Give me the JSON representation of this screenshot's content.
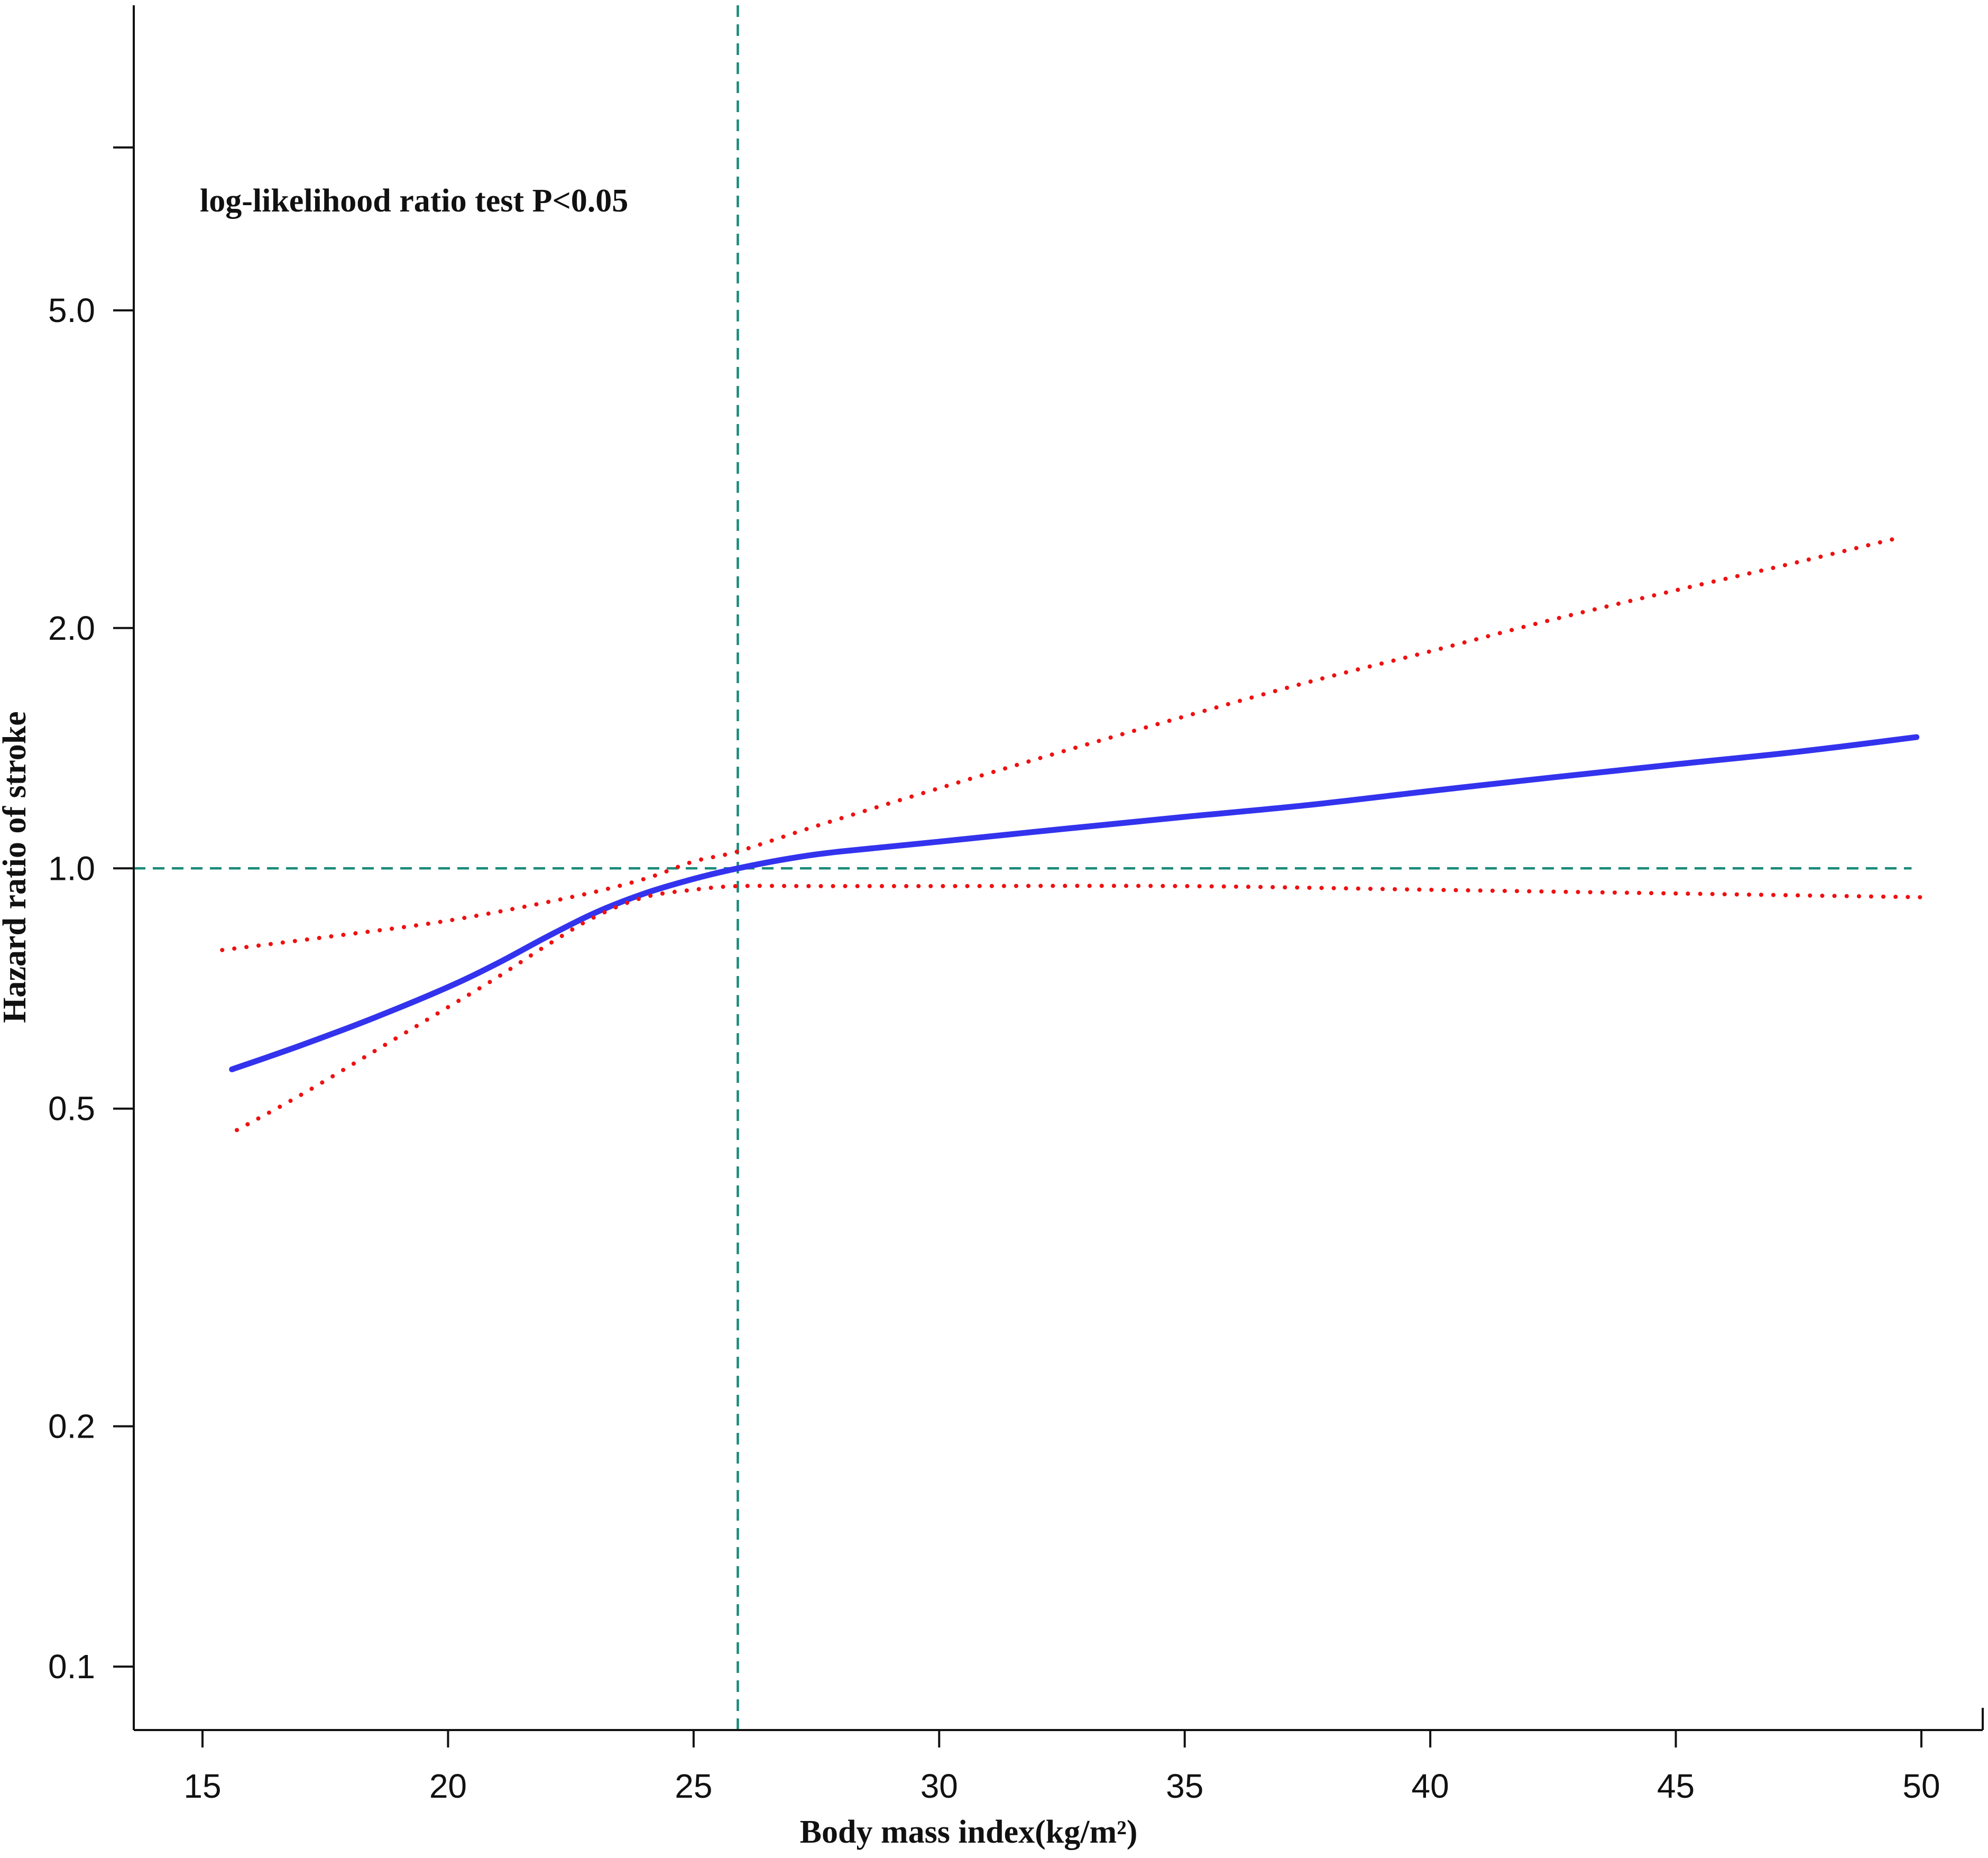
{
  "chart_data": {
    "type": "line",
    "annotation": "log-likelihood ratio test P<0.05",
    "xlabel": "Body mass index(kg/m²)",
    "ylabel": "Hazard ratio of stroke",
    "xlim": [
      13.6,
      51.2
    ],
    "ylim": [
      0.08,
      9.5
    ],
    "y_scale": "log",
    "grid": false,
    "legend": "none",
    "x_ticks": [
      15,
      20,
      25,
      30,
      35,
      40,
      45,
      50
    ],
    "x_tick_labels": [
      "15",
      "20",
      "25",
      "30",
      "35",
      "40",
      "45",
      "50"
    ],
    "y_ticks": [
      0.1,
      0.2,
      0.5,
      1.0,
      2.0,
      5.0,
      8.0
    ],
    "y_tick_labels": [
      "0.1",
      "0.2",
      "0.5",
      "1.0",
      "2.0",
      "5.0",
      ""
    ],
    "reference_lines": {
      "vertical_x": 25.9,
      "horizontal_y": 1.0,
      "color": "#1a8a7a"
    },
    "series": [
      {
        "role": "estimate",
        "color": "#3333ee",
        "style": "solid",
        "x": [
          15.6,
          17,
          18.5,
          20,
          21,
          22,
          23,
          24,
          25,
          25.9,
          27,
          28,
          30,
          32.5,
          35,
          37.5,
          40,
          42.5,
          45,
          47.5,
          49.9
        ],
        "y": [
          0.56,
          0.6,
          0.65,
          0.71,
          0.76,
          0.82,
          0.88,
          0.93,
          0.97,
          1.0,
          1.03,
          1.05,
          1.08,
          1.12,
          1.16,
          1.2,
          1.25,
          1.3,
          1.35,
          1.4,
          1.46
        ]
      },
      {
        "role": "upper-ci",
        "color": "#ee1111",
        "style": "dotted",
        "x": [
          15.4,
          17.5,
          20,
          22.5,
          24,
          25,
          25.9,
          27.5,
          30,
          32.5,
          35,
          37.5,
          40,
          42.5,
          45,
          47.5,
          49.6
        ],
        "y": [
          0.79,
          0.82,
          0.86,
          0.92,
          0.97,
          1.02,
          1.05,
          1.13,
          1.26,
          1.4,
          1.55,
          1.71,
          1.87,
          2.05,
          2.23,
          2.42,
          2.6
        ]
      },
      {
        "role": "lower-ci",
        "color": "#ee1111",
        "style": "dotted",
        "x": [
          15.7,
          17,
          18.5,
          20,
          21,
          22,
          23,
          24,
          25,
          25.9,
          27.5,
          30,
          35,
          40,
          45,
          47.5,
          50
        ],
        "y": [
          0.47,
          0.52,
          0.59,
          0.67,
          0.73,
          0.8,
          0.87,
          0.92,
          0.94,
          0.95,
          0.95,
          0.95,
          0.95,
          0.94,
          0.93,
          0.925,
          0.92
        ]
      }
    ]
  }
}
